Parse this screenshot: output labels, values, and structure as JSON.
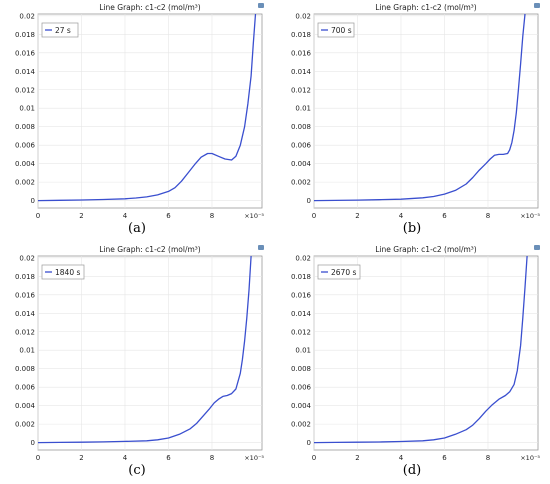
{
  "figure": {
    "captions": [
      "(a)",
      "(b)",
      "(c)",
      "(d)"
    ]
  },
  "chart_data": [
    {
      "type": "line",
      "title": "Line Graph: c1-c2 (mol/m³)",
      "legend": "27 s",
      "legend_position": "top-left",
      "x_multiplier": "×10⁻⁵",
      "xlim": [
        0,
        10.3
      ],
      "ylim": [
        -0.0008,
        0.0202
      ],
      "x_ticks": [
        "0",
        "2",
        "4",
        "6",
        "8"
      ],
      "y_ticks": [
        "0",
        "0.002",
        "0.004",
        "0.006",
        "0.008",
        "0.01",
        "0.012",
        "0.014",
        "0.016",
        "0.018",
        "0.02"
      ],
      "grid": true,
      "color": "#3a4fcf",
      "series": [
        {
          "x": [
            0,
            1,
            2,
            3,
            4,
            4.5,
            5,
            5.5,
            6,
            6.3,
            6.6,
            6.9,
            7.2,
            7.5,
            7.8,
            8.0,
            8.3,
            8.6,
            8.9,
            9.1,
            9.3,
            9.5,
            9.65,
            9.8,
            9.9,
            10.0
          ],
          "y": [
            0,
            3e-05,
            7e-05,
            0.00012,
            0.0002,
            0.00028,
            0.0004,
            0.00062,
            0.001,
            0.0014,
            0.0021,
            0.003,
            0.0039,
            0.0047,
            0.0051,
            0.0051,
            0.0048,
            0.0045,
            0.0044,
            0.0048,
            0.006,
            0.008,
            0.0105,
            0.0135,
            0.017,
            0.0202
          ]
        }
      ]
    },
    {
      "type": "line",
      "title": "Line Graph: c1-c2 (mol/m³)",
      "legend": "700 s",
      "legend_position": "top-left",
      "x_multiplier": "×10⁻⁵",
      "xlim": [
        0,
        10.3
      ],
      "ylim": [
        -0.0008,
        0.0202
      ],
      "x_ticks": [
        "0",
        "2",
        "4",
        "6",
        "8"
      ],
      "y_ticks": [
        "0",
        "0.002",
        "0.004",
        "0.006",
        "0.008",
        "0.01",
        "0.012",
        "0.014",
        "0.016",
        "0.018",
        "0.02"
      ],
      "grid": true,
      "color": "#3a4fcf",
      "series": [
        {
          "x": [
            0,
            1,
            2,
            3,
            4,
            5,
            5.5,
            6,
            6.5,
            7,
            7.3,
            7.6,
            7.9,
            8.1,
            8.3,
            8.5,
            8.7,
            8.9,
            9.0,
            9.1,
            9.2,
            9.3,
            9.4,
            9.5,
            9.6,
            9.7
          ],
          "y": [
            0,
            2e-05,
            5e-05,
            0.0001,
            0.00015,
            0.0003,
            0.00045,
            0.0007,
            0.0011,
            0.0018,
            0.0025,
            0.0033,
            0.004,
            0.0045,
            0.0049,
            0.005,
            0.005,
            0.0051,
            0.0055,
            0.0063,
            0.0076,
            0.0095,
            0.012,
            0.0148,
            0.0178,
            0.0202
          ]
        }
      ]
    },
    {
      "type": "line",
      "title": "Line Graph: c1-c2 (mol/m³)",
      "legend": "1840 s",
      "legend_position": "top-left",
      "x_multiplier": "×10⁻⁵",
      "xlim": [
        0,
        10.3
      ],
      "ylim": [
        -0.0008,
        0.0202
      ],
      "x_ticks": [
        "0",
        "2",
        "4",
        "6",
        "8"
      ],
      "y_ticks": [
        "0",
        "0.002",
        "0.004",
        "0.006",
        "0.008",
        "0.01",
        "0.012",
        "0.014",
        "0.016",
        "0.018",
        "0.02"
      ],
      "grid": true,
      "color": "#3a4fcf",
      "series": [
        {
          "x": [
            0,
            1,
            2,
            3,
            4,
            5,
            5.5,
            6,
            6.5,
            7,
            7.3,
            7.6,
            7.9,
            8.1,
            8.3,
            8.5,
            8.7,
            8.9,
            9.1,
            9.3,
            9.4,
            9.5,
            9.6,
            9.7,
            9.8
          ],
          "y": [
            0,
            2e-05,
            4e-05,
            8e-05,
            0.00013,
            0.0002,
            0.0003,
            0.0005,
            0.0009,
            0.0015,
            0.0021,
            0.0029,
            0.0037,
            0.0043,
            0.0047,
            0.005,
            0.0051,
            0.0053,
            0.0058,
            0.0075,
            0.009,
            0.011,
            0.0135,
            0.0165,
            0.0202
          ]
        }
      ]
    },
    {
      "type": "line",
      "title": "Line Graph: c1-c2 (mol/m³)",
      "legend": "2670 s",
      "legend_position": "top-left",
      "x_multiplier": "×10⁻⁵",
      "xlim": [
        0,
        10.3
      ],
      "ylim": [
        -0.0008,
        0.0202
      ],
      "x_ticks": [
        "0",
        "2",
        "4",
        "6",
        "8"
      ],
      "y_ticks": [
        "0",
        "0.002",
        "0.004",
        "0.006",
        "0.008",
        "0.01",
        "0.012",
        "0.014",
        "0.016",
        "0.018",
        "0.02"
      ],
      "grid": true,
      "color": "#3a4fcf",
      "series": [
        {
          "x": [
            0,
            1,
            2,
            3,
            4,
            5,
            5.5,
            6,
            6.5,
            7,
            7.3,
            7.6,
            7.9,
            8.2,
            8.5,
            8.8,
            9.0,
            9.2,
            9.35,
            9.5,
            9.6,
            9.7,
            9.8
          ],
          "y": [
            0,
            2e-05,
            4e-05,
            7e-05,
            0.00012,
            0.0002,
            0.0003,
            0.0005,
            0.0009,
            0.0014,
            0.0019,
            0.0026,
            0.0034,
            0.0041,
            0.0047,
            0.0051,
            0.0055,
            0.0063,
            0.0078,
            0.0105,
            0.0135,
            0.0168,
            0.0202
          ]
        }
      ]
    }
  ]
}
